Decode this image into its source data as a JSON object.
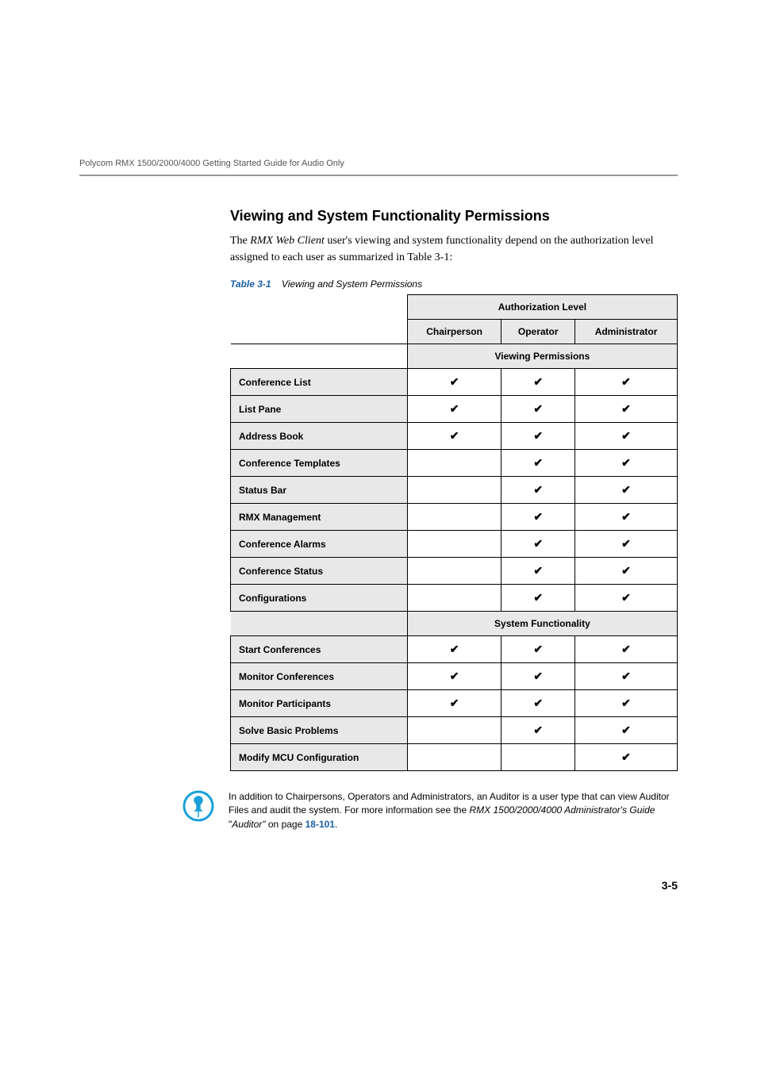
{
  "header": "Polycom RMX 1500/2000/4000 Getting Started Guide for Audio Only",
  "section_title": "Viewing and System Functionality Permissions",
  "intro_1": "The ",
  "intro_em": "RMX Web Client",
  "intro_2": " user's viewing and system functionality depend on the authorization level assigned to each user as summarized in Table 3-1:",
  "table_caption_num": "Table 3-1",
  "table_caption_label": "Viewing and System Permissions",
  "table": {
    "auth_level": "Authorization Level",
    "columns": [
      "Chairperson",
      "Operator",
      "Administrator"
    ],
    "viewing_header": "Viewing Permissions",
    "viewing_rows": [
      {
        "label": "Conference List",
        "vals": [
          true,
          true,
          true
        ]
      },
      {
        "label": "List Pane",
        "vals": [
          true,
          true,
          true
        ]
      },
      {
        "label": "Address Book",
        "vals": [
          true,
          true,
          true
        ]
      },
      {
        "label": "Conference Templates",
        "vals": [
          false,
          true,
          true
        ]
      },
      {
        "label": "Status Bar",
        "vals": [
          false,
          true,
          true
        ]
      },
      {
        "label": "RMX Management",
        "vals": [
          false,
          true,
          true
        ]
      },
      {
        "label": "Conference Alarms",
        "vals": [
          false,
          true,
          true
        ]
      },
      {
        "label": "Conference Status",
        "vals": [
          false,
          true,
          true
        ]
      },
      {
        "label": "Configurations",
        "vals": [
          false,
          true,
          true
        ]
      }
    ],
    "sysfunc_header": "System Functionality",
    "sysfunc_rows": [
      {
        "label": "Start Conferences",
        "vals": [
          true,
          true,
          true
        ]
      },
      {
        "label": "Monitor Conferences",
        "vals": [
          true,
          true,
          true
        ]
      },
      {
        "label": "Monitor Participants",
        "vals": [
          true,
          true,
          true
        ]
      },
      {
        "label": "Solve Basic Problems",
        "vals": [
          false,
          true,
          true
        ]
      },
      {
        "label": "Modify MCU Configuration",
        "vals": [
          false,
          false,
          true
        ]
      }
    ]
  },
  "note_1": "In addition to Chairpersons, Operators and Administrators, an Auditor is a user type that can view Auditor Files and audit the system. For more information see the ",
  "note_guide": "RMX 1500/2000/4000 Administrator's Guide",
  "note_2": " \"",
  "note_auditor": "Auditor\"",
  "note_3": " on page ",
  "note_link": "18-101",
  "note_4": ".",
  "page_number": "3-5",
  "checkmark": "✔",
  "colors": {
    "accent": "#1a5fa8",
    "grey_bg": "#e8e8e8",
    "rule": "#999999"
  }
}
